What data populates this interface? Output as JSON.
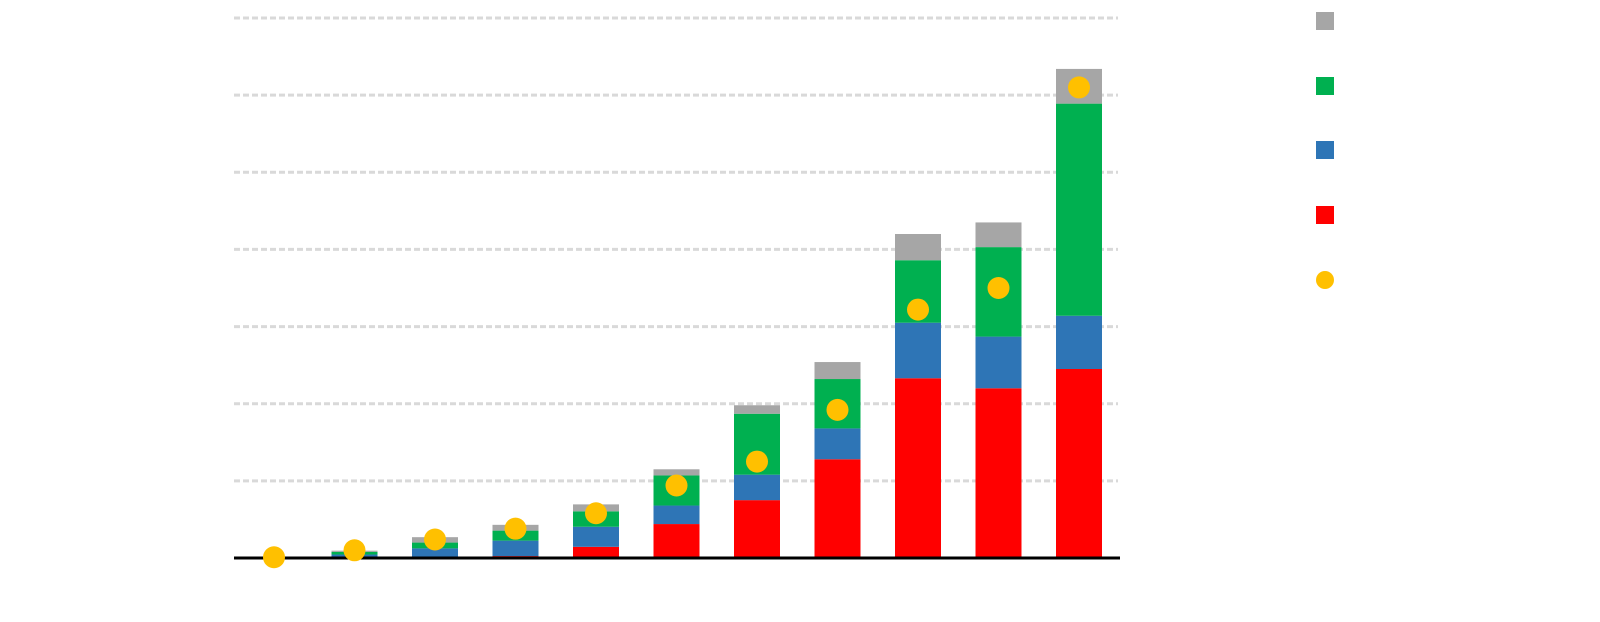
{
  "chart_data": {
    "type": "bar",
    "stacked": true,
    "categories": [
      "",
      "",
      "",
      "",
      "",
      "",
      "",
      "",
      "",
      "",
      ""
    ],
    "series": [
      {
        "color": "#ff0000",
        "values": [
          0,
          0,
          0.1,
          0.25,
          1.45,
          4.4,
          7.5,
          12.8,
          23.3,
          22.0,
          24.5
        ]
      },
      {
        "color": "#2e75b6",
        "values": [
          0.05,
          0.45,
          1.15,
          2.0,
          2.6,
          2.4,
          3.3,
          4.0,
          7.2,
          6.7,
          6.9
        ]
      },
      {
        "color": "#00b050",
        "values": [
          0.05,
          0.35,
          0.75,
          1.3,
          2.0,
          3.9,
          7.9,
          6.4,
          8.1,
          11.6,
          27.5
        ]
      },
      {
        "color": "#a6a6a6",
        "values": [
          0,
          0.15,
          0.7,
          0.75,
          0.9,
          0.8,
          1.1,
          2.2,
          3.4,
          3.2,
          4.5
        ]
      }
    ],
    "overlay": {
      "type": "scatter",
      "color": "#ffc000",
      "values": [
        0.1,
        1.0,
        2.4,
        3.8,
        5.8,
        9.4,
        12.5,
        19.2,
        32.2,
        35.0,
        61.0
      ]
    },
    "ylim": [
      0,
      70
    ],
    "y_grid_step": 10,
    "grid": true,
    "legend_position": "right",
    "legend": [
      {
        "label": "",
        "color": "#a6a6a6",
        "shape": "square"
      },
      {
        "label": "",
        "color": "#00b050",
        "shape": "square"
      },
      {
        "label": "",
        "color": "#2e75b6",
        "shape": "square"
      },
      {
        "label": "",
        "color": "#ff0000",
        "shape": "square"
      },
      {
        "label": "",
        "color": "#ffc000",
        "shape": "circle"
      }
    ],
    "title": "",
    "xlabel": "",
    "ylabel": ""
  }
}
